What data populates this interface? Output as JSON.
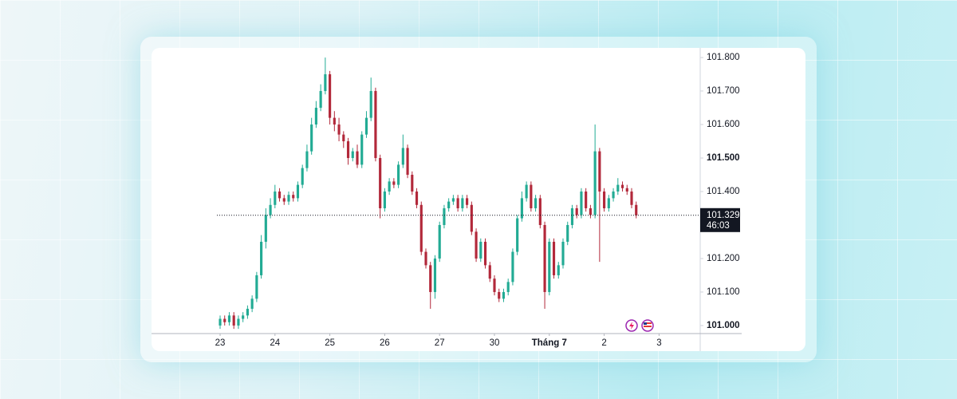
{
  "chart_data": {
    "type": "candlestick",
    "xlim": [
      -15,
      105
    ],
    "xticks": [
      {
        "value": 0,
        "label": "23"
      },
      {
        "value": 12,
        "label": "24"
      },
      {
        "value": 24,
        "label": "25"
      },
      {
        "value": 36,
        "label": "26"
      },
      {
        "value": 48,
        "label": "27"
      },
      {
        "value": 60,
        "label": "30"
      },
      {
        "value": 72,
        "label": "Tháng 7"
      },
      {
        "value": 84,
        "label": "2"
      },
      {
        "value": 96,
        "label": "3"
      }
    ],
    "ylim": [
      100.976,
      101.824
    ],
    "yticks": [
      {
        "value": 101.0,
        "label": "101.000"
      },
      {
        "value": 101.1,
        "label": "101.100"
      },
      {
        "value": 101.2,
        "label": "101.200"
      },
      {
        "value": 101.3,
        "label": "101.300"
      },
      {
        "value": 101.4,
        "label": "101.400"
      },
      {
        "value": 101.5,
        "label": "101.500"
      },
      {
        "value": 101.6,
        "label": "101.600"
      },
      {
        "value": 101.7,
        "label": "101.700"
      },
      {
        "value": 101.8,
        "label": "101.800"
      }
    ],
    "up_color": "#22ab94",
    "down_color": "#b2283a",
    "last_price": 101.329,
    "countdown": "46:03",
    "open": [
      101.0,
      101.02,
      101.01,
      101.03,
      101.0,
      101.02,
      101.03,
      101.05,
      101.08,
      101.15,
      101.25,
      101.33,
      101.36,
      101.4,
      101.38,
      101.37,
      101.39,
      101.38,
      101.42,
      101.47,
      101.52,
      101.6,
      101.65,
      101.7,
      101.75,
      101.62,
      101.6,
      101.57,
      101.55,
      101.5,
      101.52,
      101.48,
      101.57,
      101.62,
      101.7,
      101.5,
      101.35,
      101.4,
      101.43,
      101.42,
      101.48,
      101.53,
      101.45,
      101.4,
      101.36,
      101.22,
      101.18,
      101.1,
      101.2,
      101.3,
      101.35,
      101.37,
      101.38,
      101.35,
      101.38,
      101.36,
      101.28,
      101.2,
      101.25,
      101.18,
      101.14,
      101.1,
      101.08,
      101.1,
      101.13,
      101.22,
      101.32,
      101.38,
      101.42,
      101.35,
      101.38,
      101.3,
      101.1,
      101.25,
      101.15,
      101.18,
      101.25,
      101.3,
      101.35,
      101.33,
      101.4,
      101.35,
      101.33,
      101.52,
      101.4,
      101.35,
      101.38,
      101.4,
      101.42,
      101.41,
      101.4,
      101.36
    ],
    "high": [
      101.03,
      101.03,
      101.04,
      101.04,
      101.03,
      101.04,
      101.06,
      101.09,
      101.16,
      101.27,
      101.35,
      101.38,
      101.42,
      101.41,
      101.39,
      101.4,
      101.4,
      101.43,
      101.48,
      101.54,
      101.62,
      101.67,
      101.72,
      101.8,
      101.76,
      101.64,
      101.62,
      101.58,
      101.56,
      101.53,
      101.54,
      101.58,
      101.64,
      101.74,
      101.71,
      101.51,
      101.41,
      101.44,
      101.44,
      101.49,
      101.57,
      101.54,
      101.46,
      101.41,
      101.37,
      101.23,
      101.19,
      101.21,
      101.31,
      101.36,
      101.38,
      101.39,
      101.39,
      101.39,
      101.39,
      101.37,
      101.29,
      101.26,
      101.26,
      101.19,
      101.15,
      101.11,
      101.11,
      101.14,
      101.23,
      101.33,
      101.4,
      101.43,
      101.43,
      101.39,
      101.39,
      101.31,
      101.26,
      101.26,
      101.19,
      101.26,
      101.31,
      101.36,
      101.36,
      101.41,
      101.41,
      101.36,
      101.6,
      101.53,
      101.41,
      101.39,
      101.41,
      101.44,
      101.43,
      101.42,
      101.41,
      101.37
    ],
    "low": [
      100.99,
      101.0,
      101.0,
      100.99,
      100.99,
      101.01,
      101.02,
      101.04,
      101.07,
      101.14,
      101.23,
      101.32,
      101.35,
      101.37,
      101.36,
      101.36,
      101.37,
      101.37,
      101.41,
      101.46,
      101.51,
      101.59,
      101.64,
      101.69,
      101.6,
      101.58,
      101.55,
      101.53,
      101.48,
      101.49,
      101.47,
      101.47,
      101.56,
      101.61,
      101.49,
      101.32,
      101.34,
      101.39,
      101.41,
      101.41,
      101.47,
      101.44,
      101.39,
      101.35,
      101.21,
      101.17,
      101.05,
      101.08,
      101.19,
      101.29,
      101.34,
      101.36,
      101.34,
      101.34,
      101.35,
      101.27,
      101.19,
      101.19,
      101.17,
      101.13,
      101.09,
      101.07,
      101.07,
      101.09,
      101.12,
      101.21,
      101.31,
      101.37,
      101.34,
      101.34,
      101.29,
      101.05,
      101.09,
      101.14,
      101.14,
      101.17,
      101.24,
      101.29,
      101.32,
      101.32,
      101.34,
      101.32,
      101.32,
      101.19,
      101.34,
      101.34,
      101.37,
      101.39,
      101.4,
      101.39,
      101.35,
      101.32
    ],
    "close": [
      101.02,
      101.01,
      101.03,
      101.0,
      101.02,
      101.03,
      101.05,
      101.08,
      101.15,
      101.25,
      101.33,
      101.36,
      101.4,
      101.38,
      101.37,
      101.39,
      101.38,
      101.42,
      101.47,
      101.52,
      101.6,
      101.65,
      101.7,
      101.75,
      101.62,
      101.6,
      101.57,
      101.55,
      101.5,
      101.52,
      101.48,
      101.57,
      101.62,
      101.7,
      101.5,
      101.35,
      101.4,
      101.43,
      101.42,
      101.48,
      101.53,
      101.45,
      101.4,
      101.36,
      101.22,
      101.18,
      101.1,
      101.2,
      101.3,
      101.35,
      101.37,
      101.38,
      101.35,
      101.38,
      101.36,
      101.28,
      101.2,
      101.25,
      101.18,
      101.14,
      101.1,
      101.08,
      101.1,
      101.13,
      101.22,
      101.32,
      101.38,
      101.42,
      101.35,
      101.38,
      101.3,
      101.1,
      101.25,
      101.15,
      101.18,
      101.25,
      101.3,
      101.35,
      101.33,
      101.4,
      101.35,
      101.33,
      101.52,
      101.4,
      101.35,
      101.38,
      101.4,
      101.42,
      101.41,
      101.4,
      101.36,
      101.329
    ]
  }
}
